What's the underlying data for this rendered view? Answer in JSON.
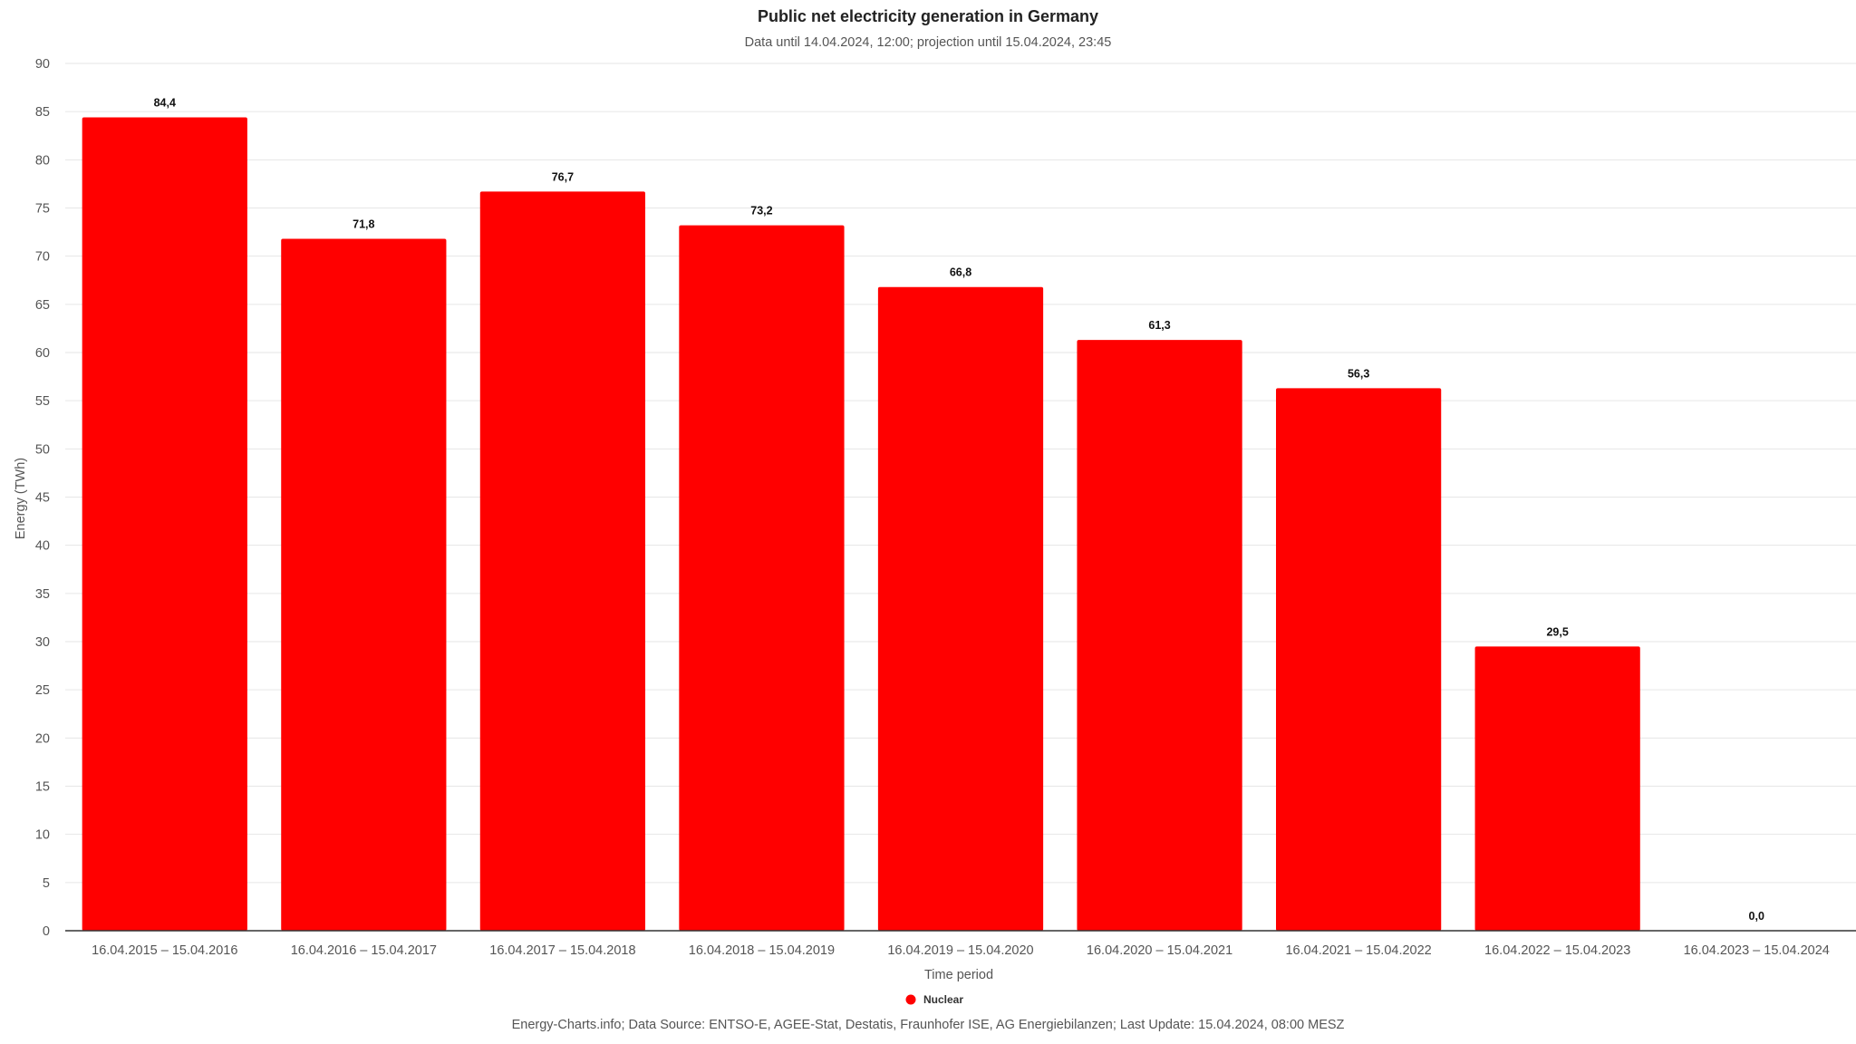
{
  "chart_data": {
    "type": "bar",
    "title": "Public net electricity generation in Germany",
    "subtitle": "Data until 14.04.2024, 12:00; projection until 15.04.2024, 23:45",
    "xlabel": "Time period",
    "ylabel": "Energy (TWh)",
    "ylim": [
      0,
      90
    ],
    "y_ticks": [
      "0",
      "5",
      "10",
      "15",
      "20",
      "25",
      "30",
      "35",
      "40",
      "45",
      "50",
      "55",
      "60",
      "65",
      "70",
      "75",
      "80",
      "85",
      "90"
    ],
    "grid": true,
    "legend_position": "bottom-center",
    "categories": [
      "16.04.2015 – 15.04.2016",
      "16.04.2016 – 15.04.2017",
      "16.04.2017 – 15.04.2018",
      "16.04.2018 – 15.04.2019",
      "16.04.2019 – 15.04.2020",
      "16.04.2020 – 15.04.2021",
      "16.04.2021 – 15.04.2022",
      "16.04.2022 – 15.04.2023",
      "16.04.2023 – 15.04.2024"
    ],
    "series": [
      {
        "name": "Nuclear",
        "color": "#ff0000",
        "values": [
          84.4,
          71.8,
          76.7,
          73.2,
          66.8,
          61.3,
          56.3,
          29.5,
          0.0
        ],
        "data_labels": [
          "84,4",
          "71,8",
          "76,7",
          "73,2",
          "66,8",
          "61,3",
          "56,3",
          "29,5",
          "0,0"
        ]
      }
    ],
    "credits": "Energy-Charts.info; Data Source: ENTSO-E, AGEE-Stat, Destatis, Fraunhofer ISE, AG Energiebilanzen; Last Update: 15.04.2024, 08:00 MESZ"
  }
}
